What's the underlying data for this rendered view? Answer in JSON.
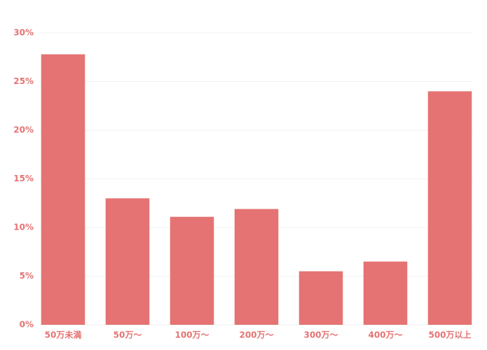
{
  "chart_data": {
    "type": "bar",
    "categories": [
      "50万未満",
      "50万〜",
      "100万〜",
      "200万〜",
      "300万〜",
      "400万〜",
      "500万以上"
    ],
    "values": [
      27.8,
      13.0,
      11.1,
      11.9,
      5.5,
      6.5,
      24.0
    ],
    "color": "#e57373",
    "ylim": [
      0,
      30
    ],
    "yticks": [
      {
        "value": 0,
        "label": "0%"
      },
      {
        "value": 5,
        "label": "5%"
      },
      {
        "value": 10,
        "label": "10%"
      },
      {
        "value": 15,
        "label": "15%"
      },
      {
        "value": 20,
        "label": "20%"
      },
      {
        "value": 25,
        "label": "25%"
      },
      {
        "value": 30,
        "label": "30%"
      }
    ],
    "grid": true
  }
}
